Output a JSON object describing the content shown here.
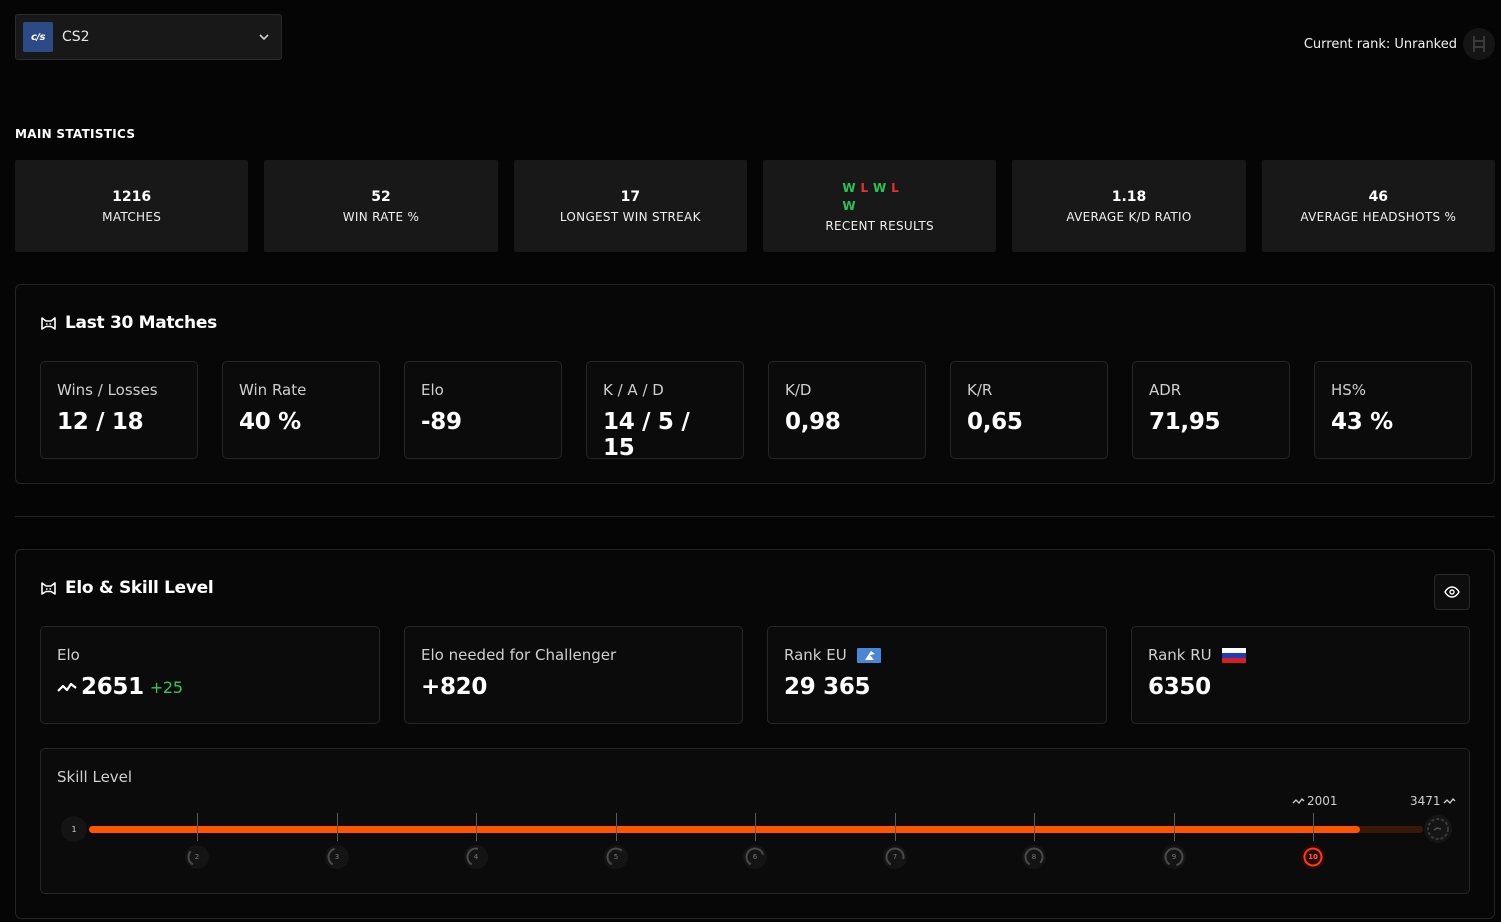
{
  "game": {
    "logo_text": "c/s",
    "name": "CS2"
  },
  "current_rank": {
    "label": "Current rank: Unranked",
    "icon": "rank-badge-icon"
  },
  "main_statistics": {
    "title": "MAIN STATISTICS",
    "cards": [
      {
        "value": "1216",
        "label": "MATCHES"
      },
      {
        "value": "52",
        "label": "WIN RATE %"
      },
      {
        "value": "17",
        "label": "LONGEST WIN STREAK"
      },
      {
        "results": [
          "W",
          "L",
          "W",
          "L",
          "W"
        ],
        "label": "RECENT RESULTS"
      },
      {
        "value": "1.18",
        "label": "AVERAGE K/D RATIO"
      },
      {
        "value": "46",
        "label": "AVERAGE HEADSHOTS %"
      }
    ]
  },
  "last_matches": {
    "title": "Last 30 Matches",
    "stats": [
      {
        "label": "Wins / Losses",
        "value": "12 / 18"
      },
      {
        "label": "Win Rate",
        "value": "40 %"
      },
      {
        "label": "Elo",
        "value": "-89"
      },
      {
        "label": "K / A / D",
        "value": "14 / 5 / 15"
      },
      {
        "label": "K/D",
        "value": "0,98"
      },
      {
        "label": "K/R",
        "value": "0,65"
      },
      {
        "label": "ADR",
        "value": "71,95"
      },
      {
        "label": "HS%",
        "value": "43 %"
      }
    ]
  },
  "elo_skill": {
    "title": "Elo & Skill Level",
    "elo": {
      "label": "Elo",
      "value": "2651",
      "delta": "+25"
    },
    "challenger": {
      "label": "Elo needed for Challenger",
      "value": "+820"
    },
    "rank_eu": {
      "label": "Rank EU",
      "value": "29 365"
    },
    "rank_ru": {
      "label": "Rank RU",
      "value": "6350"
    },
    "skill": {
      "label": "Skill Level",
      "levels": [
        "1",
        "2",
        "3",
        "4",
        "5",
        "6",
        "7",
        "8",
        "9",
        "10"
      ],
      "current_level": "10",
      "level10_min": "2001",
      "challenger_elo": "3471",
      "progress": 0.953
    }
  },
  "colors": {
    "accent": "#ff5500",
    "win": "#29c455",
    "loss": "#ee2e2e",
    "delta": "#2ec85b"
  }
}
